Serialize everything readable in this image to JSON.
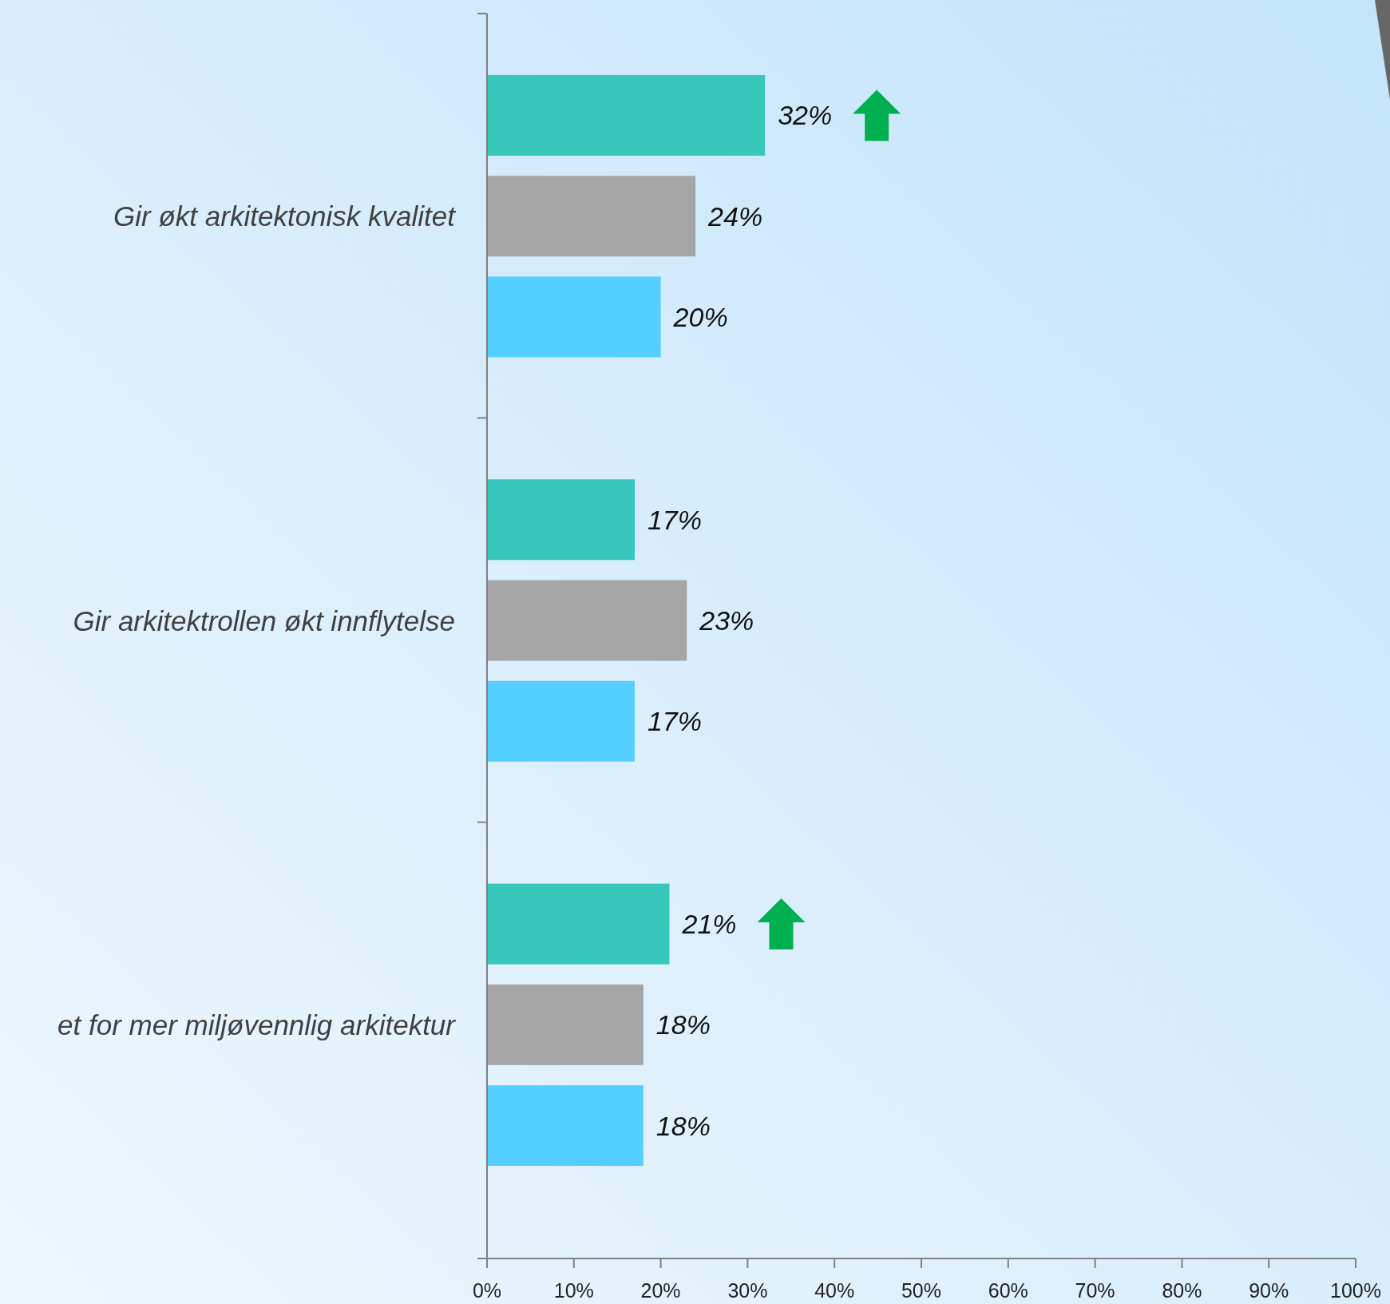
{
  "chart_data": {
    "type": "bar",
    "orientation": "horizontal",
    "categories": [
      "Gir økt arkitektonisk kvalitet",
      "Gir arkitektrollen økt innflytelse",
      "et for mer miljøvennlig arkitektur"
    ],
    "series": [
      {
        "color": "#37c8bb",
        "values": [
          32,
          17,
          21
        ]
      },
      {
        "color": "#a6a6a6",
        "values": [
          24,
          23,
          18
        ]
      },
      {
        "color": "#55cfff",
        "values": [
          20,
          17,
          18
        ]
      }
    ],
    "xlim": [
      0,
      100
    ],
    "xticks": [
      {
        "value": 0,
        "label": "0%"
      },
      {
        "value": 10,
        "label": "10%"
      },
      {
        "value": 20,
        "label": "20%"
      },
      {
        "value": 30,
        "label": "30%"
      },
      {
        "value": 40,
        "label": "40%"
      },
      {
        "value": 50,
        "label": "50%"
      },
      {
        "value": 60,
        "label": "60%"
      },
      {
        "value": 70,
        "label": "70%"
      },
      {
        "value": 80,
        "label": "80%"
      },
      {
        "value": 90,
        "label": "90%"
      },
      {
        "value": 100,
        "label": "100%"
      }
    ],
    "value_labels": [
      [
        "32%",
        "17%",
        "21%"
      ],
      [
        "24%",
        "23%",
        "18%"
      ],
      [
        "20%",
        "17%",
        "18%"
      ]
    ],
    "grid": false
  }
}
